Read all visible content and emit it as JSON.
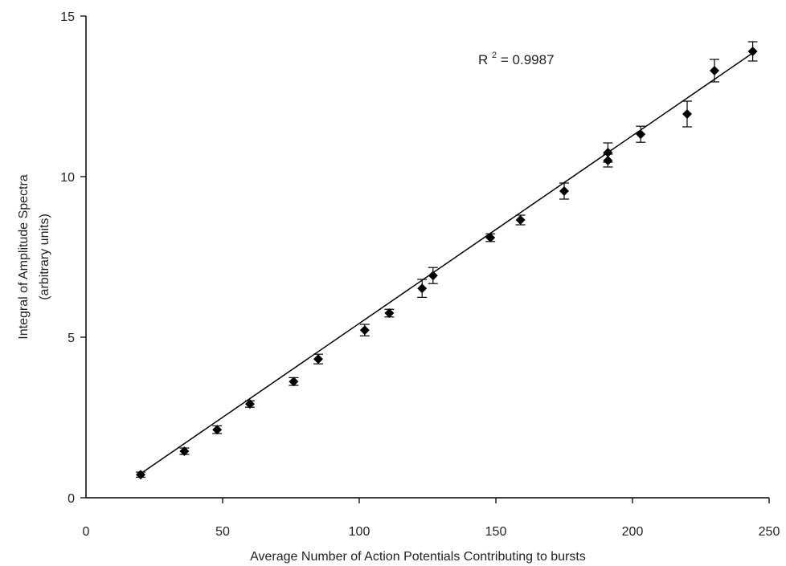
{
  "chart_data": {
    "type": "scatter",
    "title": "",
    "xlabel": "Average Number of Action Potentials Contributing to bursts",
    "ylabel": "Integral of Amplitude Spectra",
    "ylabel_line2": "(arbitrary units)",
    "xlim": [
      0,
      250
    ],
    "ylim": [
      0,
      15
    ],
    "xticks": [
      0,
      50,
      100,
      150,
      200,
      250
    ],
    "xtick_labels": [
      "0",
      "50",
      "100",
      "150",
      "200",
      "250"
    ],
    "yticks": [
      0,
      5,
      10,
      15
    ],
    "ytick_labels": [
      "0",
      "5",
      "10",
      "15"
    ],
    "grid": false,
    "legend": "none",
    "annotation": {
      "base": "R",
      "sup": "2",
      "rest": " = 0.9987"
    },
    "trendline": {
      "x": [
        20,
        244
      ],
      "y": [
        0.75,
        13.85
      ]
    },
    "series": [
      {
        "marker": "diamond",
        "color": "#000000",
        "points": [
          {
            "x": 20,
            "y": 0.72,
            "err": 0.08
          },
          {
            "x": 36,
            "y": 1.45,
            "err": 0.1
          },
          {
            "x": 48,
            "y": 2.12,
            "err": 0.12
          },
          {
            "x": 60,
            "y": 2.92,
            "err": 0.1
          },
          {
            "x": 76,
            "y": 3.62,
            "err": 0.12
          },
          {
            "x": 85,
            "y": 4.32,
            "err": 0.15
          },
          {
            "x": 102,
            "y": 5.22,
            "err": 0.18
          },
          {
            "x": 111,
            "y": 5.75,
            "err": 0.12
          },
          {
            "x": 123,
            "y": 6.52,
            "err": 0.28
          },
          {
            "x": 127,
            "y": 6.92,
            "err": 0.25
          },
          {
            "x": 148,
            "y": 8.1,
            "err": 0.12
          },
          {
            "x": 159,
            "y": 8.65,
            "err": 0.15
          },
          {
            "x": 175,
            "y": 9.55,
            "err": 0.25
          },
          {
            "x": 191,
            "y": 10.75,
            "err": 0.3
          },
          {
            "x": 191,
            "y": 10.5,
            "err": 0.2
          },
          {
            "x": 203,
            "y": 11.32,
            "err": 0.25
          },
          {
            "x": 220,
            "y": 11.95,
            "err": 0.4
          },
          {
            "x": 230,
            "y": 13.3,
            "err": 0.35
          },
          {
            "x": 244,
            "y": 13.9,
            "err": 0.3
          }
        ]
      }
    ]
  }
}
